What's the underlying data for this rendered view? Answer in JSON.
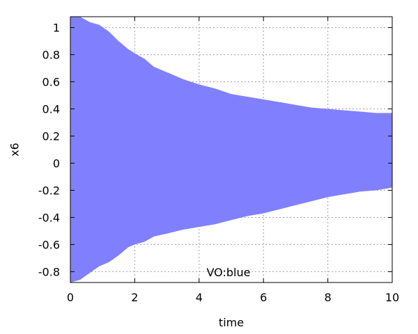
{
  "chart_data": {
    "type": "area",
    "title": "",
    "xlabel": "time",
    "ylabel": "x6",
    "xlim": [
      0,
      10
    ],
    "ylim": [
      -0.88,
      1.08
    ],
    "x_ticks": [
      0,
      2,
      4,
      6,
      8,
      10
    ],
    "y_ticks": [
      -0.8,
      -0.6,
      -0.4,
      -0.2,
      0,
      0.2,
      0.4,
      0.6,
      0.8,
      1
    ],
    "grid": true,
    "annotation": "VO:blue",
    "fill_color": "#8080ff",
    "series": [
      {
        "x": [
          0,
          0.3,
          0.6,
          0.9,
          1.2,
          1.5,
          1.8,
          2.0,
          2.3,
          2.6,
          3.0,
          3.5,
          4.0,
          4.5,
          5.0,
          5.5,
          6.0,
          6.5,
          7.0,
          7.5,
          8.0,
          8.5,
          9.0,
          9.5,
          10.0
        ],
        "upper": [
          1.08,
          1.08,
          1.04,
          1.02,
          0.97,
          0.9,
          0.84,
          0.81,
          0.77,
          0.71,
          0.67,
          0.62,
          0.58,
          0.55,
          0.51,
          0.49,
          0.47,
          0.45,
          0.43,
          0.41,
          0.4,
          0.39,
          0.38,
          0.37,
          0.37
        ],
        "lower": [
          -0.88,
          -0.86,
          -0.81,
          -0.76,
          -0.73,
          -0.68,
          -0.62,
          -0.6,
          -0.58,
          -0.54,
          -0.52,
          -0.49,
          -0.47,
          -0.45,
          -0.42,
          -0.39,
          -0.37,
          -0.34,
          -0.31,
          -0.28,
          -0.25,
          -0.23,
          -0.21,
          -0.2,
          -0.18
        ]
      }
    ]
  }
}
